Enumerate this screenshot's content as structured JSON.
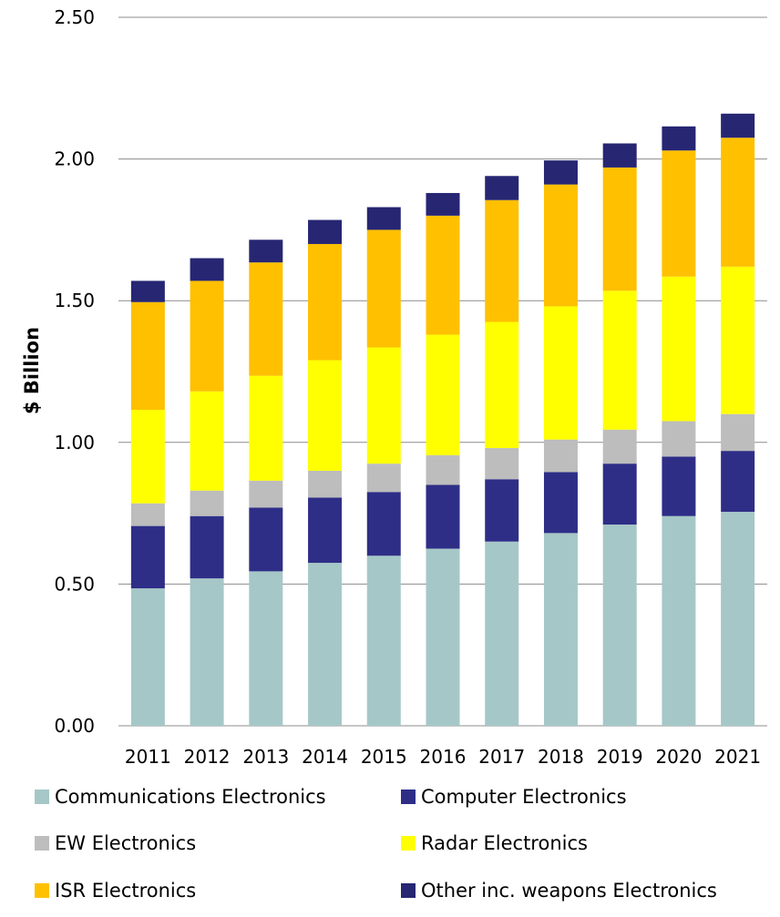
{
  "chart_data": {
    "type": "bar",
    "stacked": true,
    "ylabel": "$ Billion",
    "xlabel": "",
    "ylim": [
      0,
      2.5
    ],
    "yticks": [
      "0.00",
      "0.50",
      "1.00",
      "1.50",
      "2.00",
      "2.50"
    ],
    "categories": [
      "2011",
      "2012",
      "2013",
      "2014",
      "2015",
      "2016",
      "2017",
      "2018",
      "2019",
      "2020",
      "2021"
    ],
    "grid": true,
    "legend_position": "bottom",
    "series": [
      {
        "name": "Communications Electronics",
        "color": "#a6c7c7",
        "values": [
          0.485,
          0.52,
          0.545,
          0.575,
          0.6,
          0.625,
          0.65,
          0.68,
          0.71,
          0.74,
          0.755
        ]
      },
      {
        "name": "Computer Electronics",
        "color": "#2e2e87",
        "values": [
          0.22,
          0.22,
          0.225,
          0.23,
          0.225,
          0.225,
          0.22,
          0.215,
          0.215,
          0.21,
          0.215
        ]
      },
      {
        "name": "EW Electronics",
        "color": "#bdbdbd",
        "values": [
          0.08,
          0.09,
          0.095,
          0.095,
          0.1,
          0.105,
          0.11,
          0.115,
          0.12,
          0.125,
          0.13
        ]
      },
      {
        "name": "Radar Electronics",
        "color": "#ffff00",
        "values": [
          0.33,
          0.35,
          0.37,
          0.39,
          0.41,
          0.425,
          0.445,
          0.47,
          0.49,
          0.51,
          0.52
        ]
      },
      {
        "name": "ISR Electronics",
        "color": "#ffc000",
        "values": [
          0.38,
          0.39,
          0.4,
          0.41,
          0.415,
          0.42,
          0.43,
          0.43,
          0.435,
          0.445,
          0.455
        ]
      },
      {
        "name": "Other inc. weapons Electronics",
        "color": "#262673",
        "values": [
          0.075,
          0.08,
          0.08,
          0.085,
          0.08,
          0.08,
          0.085,
          0.085,
          0.085,
          0.085,
          0.085
        ]
      }
    ]
  }
}
